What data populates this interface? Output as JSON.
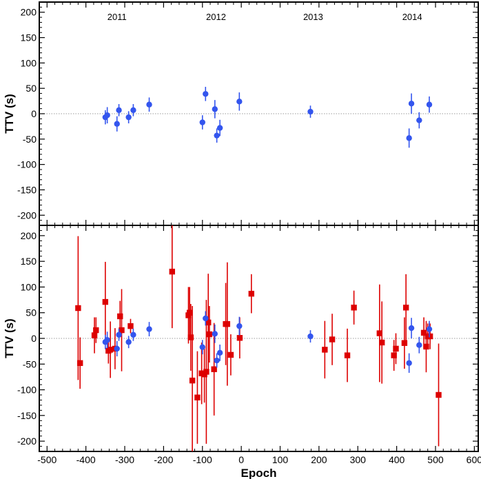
{
  "chart_data": [
    {
      "type": "scatter",
      "panel": "top",
      "ylabel": "TTV (s)",
      "xlabel": "",
      "xlim": [
        -520,
        610
      ],
      "ylim": [
        -220,
        220
      ],
      "xticks": [
        -500,
        -400,
        -300,
        -200,
        -100,
        0,
        100,
        200,
        300,
        400,
        500,
        600
      ],
      "yticks": [
        -200,
        -150,
        -100,
        -50,
        0,
        50,
        100,
        150,
        200
      ],
      "zero_line": true,
      "annotations": [
        {
          "text": "2011",
          "x": -320,
          "y": 185
        },
        {
          "text": "2012",
          "x": -65,
          "y": 185
        },
        {
          "text": "2013",
          "x": 185,
          "y": 185
        },
        {
          "text": "2014",
          "x": 440,
          "y": 185
        }
      ],
      "series": [
        {
          "name": "blue",
          "marker": "circle",
          "color": "#3355ee",
          "points": [
            {
              "x": -350,
              "y": -7,
              "err": 14
            },
            {
              "x": -345,
              "y": -3,
              "err": 16
            },
            {
              "x": -320,
              "y": -20,
              "err": 15
            },
            {
              "x": -315,
              "y": 7,
              "err": 12
            },
            {
              "x": -290,
              "y": -7,
              "err": 12
            },
            {
              "x": -278,
              "y": 7,
              "err": 12
            },
            {
              "x": -237,
              "y": 18,
              "err": 14
            },
            {
              "x": -100,
              "y": -17,
              "err": 14
            },
            {
              "x": -92,
              "y": 39,
              "err": 14
            },
            {
              "x": -68,
              "y": 9,
              "err": 18
            },
            {
              "x": -63,
              "y": -43,
              "err": 14
            },
            {
              "x": -55,
              "y": -28,
              "err": 16
            },
            {
              "x": -5,
              "y": 24,
              "err": 18
            },
            {
              "x": 178,
              "y": 4,
              "err": 12
            },
            {
              "x": 432,
              "y": -48,
              "err": 19
            },
            {
              "x": 438,
              "y": 20,
              "err": 20
            },
            {
              "x": 458,
              "y": -13,
              "err": 16
            },
            {
              "x": 484,
              "y": 18,
              "err": 16
            }
          ]
        }
      ]
    },
    {
      "type": "scatter",
      "panel": "bottom",
      "ylabel": "TTV (s)",
      "xlabel": "Epoch",
      "xlim": [
        -520,
        610
      ],
      "ylim": [
        -220,
        220
      ],
      "xticks": [
        -500,
        -400,
        -300,
        -200,
        -100,
        0,
        100,
        200,
        300,
        400,
        500,
        600
      ],
      "yticks": [
        -200,
        -150,
        -100,
        -50,
        0,
        50,
        100,
        150,
        200
      ],
      "zero_line": true,
      "series": [
        {
          "name": "blue",
          "marker": "circle",
          "color": "#3355ee",
          "points": [
            {
              "x": -350,
              "y": -7,
              "err": 14
            },
            {
              "x": -345,
              "y": -3,
              "err": 16
            },
            {
              "x": -320,
              "y": -20,
              "err": 15
            },
            {
              "x": -315,
              "y": 7,
              "err": 12
            },
            {
              "x": -290,
              "y": -7,
              "err": 12
            },
            {
              "x": -278,
              "y": 7,
              "err": 12
            },
            {
              "x": -237,
              "y": 18,
              "err": 14
            },
            {
              "x": -100,
              "y": -17,
              "err": 14
            },
            {
              "x": -92,
              "y": 39,
              "err": 14
            },
            {
              "x": -68,
              "y": 9,
              "err": 18
            },
            {
              "x": -63,
              "y": -43,
              "err": 14
            },
            {
              "x": -55,
              "y": -28,
              "err": 16
            },
            {
              "x": -5,
              "y": 24,
              "err": 18
            },
            {
              "x": 178,
              "y": 4,
              "err": 12
            },
            {
              "x": 432,
              "y": -48,
              "err": 19
            },
            {
              "x": 438,
              "y": 20,
              "err": 20
            },
            {
              "x": 458,
              "y": -13,
              "err": 16
            },
            {
              "x": 484,
              "y": 18,
              "err": 16
            }
          ]
        },
        {
          "name": "red",
          "marker": "square",
          "color": "#dd0000",
          "points": [
            {
              "x": -420,
              "y": 59,
              "err": 140
            },
            {
              "x": -415,
              "y": -48,
              "err": 50
            },
            {
              "x": -378,
              "y": 6,
              "err": 35
            },
            {
              "x": -374,
              "y": 16,
              "err": 25
            },
            {
              "x": -350,
              "y": 71,
              "err": 78
            },
            {
              "x": -342,
              "y": -24,
              "err": 25
            },
            {
              "x": -337,
              "y": -22,
              "err": 55
            },
            {
              "x": -325,
              "y": -20,
              "err": 40
            },
            {
              "x": -312,
              "y": 43,
              "err": 30
            },
            {
              "x": -308,
              "y": 16,
              "err": 80
            },
            {
              "x": -285,
              "y": 24,
              "err": 14
            },
            {
              "x": -178,
              "y": 130,
              "err": 110
            },
            {
              "x": -136,
              "y": 45,
              "err": 55
            },
            {
              "x": -133,
              "y": 50,
              "err": 50
            },
            {
              "x": -130,
              "y": 2,
              "err": 65
            },
            {
              "x": -126,
              "y": -82,
              "err": 145
            },
            {
              "x": -113,
              "y": -115,
              "err": 90
            },
            {
              "x": -102,
              "y": -68,
              "err": 60
            },
            {
              "x": -95,
              "y": -70,
              "err": 55
            },
            {
              "x": -90,
              "y": -65,
              "err": 140
            },
            {
              "x": -85,
              "y": 31,
              "err": 95
            },
            {
              "x": -82,
              "y": 8,
              "err": 55
            },
            {
              "x": -70,
              "y": -60,
              "err": 90
            },
            {
              "x": -40,
              "y": 28,
              "err": 80
            },
            {
              "x": -36,
              "y": 28,
              "err": 120
            },
            {
              "x": -27,
              "y": -32,
              "err": 40
            },
            {
              "x": -4,
              "y": 1,
              "err": 40
            },
            {
              "x": 26,
              "y": 87,
              "err": 38
            },
            {
              "x": 215,
              "y": -22,
              "err": 56
            },
            {
              "x": 234,
              "y": -2,
              "err": 50
            },
            {
              "x": 273,
              "y": -33,
              "err": 52
            },
            {
              "x": 290,
              "y": 60,
              "err": 33
            },
            {
              "x": 356,
              "y": 10,
              "err": 95
            },
            {
              "x": 362,
              "y": -8,
              "err": 80
            },
            {
              "x": 393,
              "y": -33,
              "err": 30
            },
            {
              "x": 398,
              "y": -20,
              "err": 30
            },
            {
              "x": 420,
              "y": -9,
              "err": 50
            },
            {
              "x": 424,
              "y": 60,
              "err": 65
            },
            {
              "x": 470,
              "y": 11,
              "err": 30
            },
            {
              "x": 476,
              "y": -16,
              "err": 50
            },
            {
              "x": 480,
              "y": 4,
              "err": 25
            },
            {
              "x": 486,
              "y": 4,
              "err": 25
            },
            {
              "x": 508,
              "y": -110,
              "err": 100
            }
          ]
        }
      ]
    }
  ]
}
